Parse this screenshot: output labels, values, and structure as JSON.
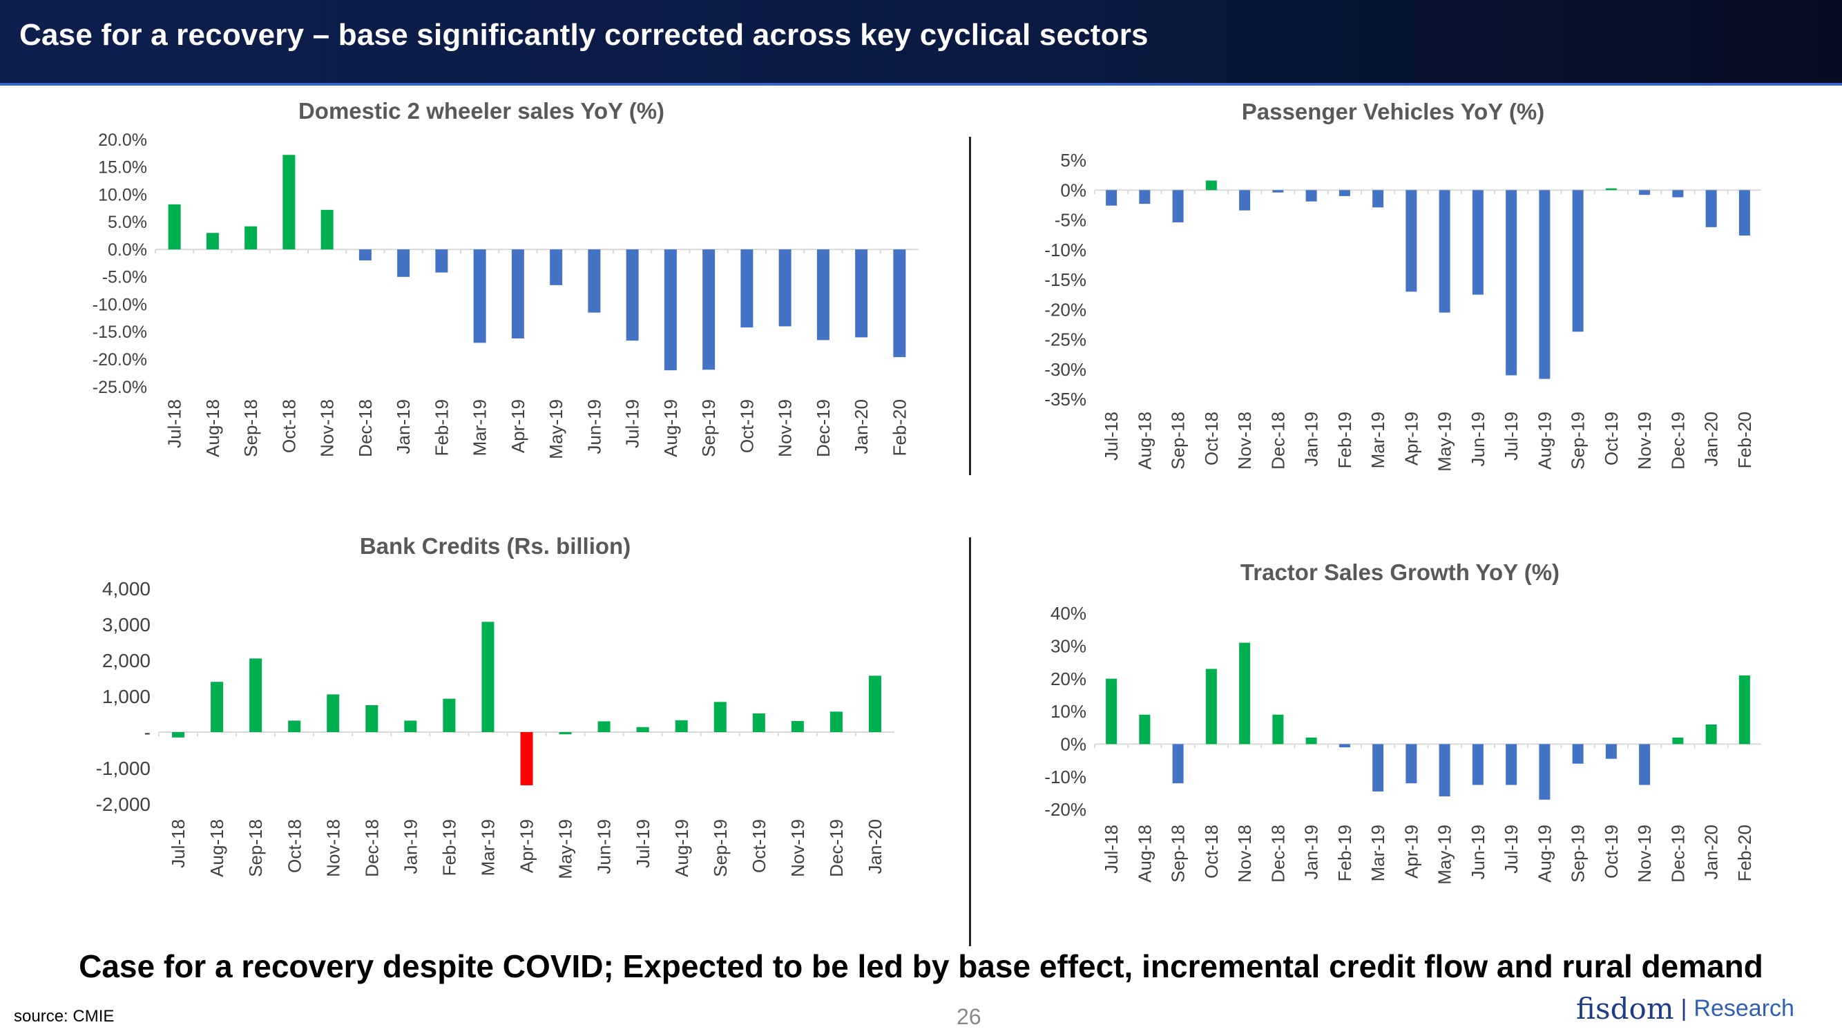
{
  "slide": {
    "title": "Case for a recovery – base significantly corrected across key cyclical sectors",
    "headline": "Case for a recovery despite COVID; Expected to be led by base effect, incremental credit flow and rural demand",
    "source": "source: CMIE",
    "page_number": "26",
    "brand": {
      "logo": "fisdom",
      "separator": "|",
      "unit": "Research"
    }
  },
  "colors": {
    "positive": "#00b050",
    "negative": "#4472c4",
    "highlight": "#ff0000",
    "title": "#595959",
    "axis_text": "#595959",
    "tick_text": "#404040"
  },
  "chart_data": [
    {
      "id": "two_wheeler",
      "type": "bar",
      "title": "Domestic 2 wheeler sales YoY (%)",
      "categories": [
        "Jul-18",
        "Aug-18",
        "Sep-18",
        "Oct-18",
        "Nov-18",
        "Dec-18",
        "Jan-19",
        "Feb-19",
        "Mar-19",
        "Apr-19",
        "May-19",
        "Jun-19",
        "Jul-19",
        "Aug-19",
        "Sep-19",
        "Oct-19",
        "Nov-19",
        "Dec-19",
        "Jan-20",
        "Feb-20"
      ],
      "values": [
        8.2,
        3.0,
        4.2,
        17.2,
        7.2,
        -2.0,
        -5.0,
        -4.2,
        -17.0,
        -16.2,
        -6.5,
        -11.5,
        -16.6,
        -22.0,
        -21.9,
        -14.2,
        -14.0,
        -16.5,
        -16.0,
        -19.6
      ],
      "ylim": [
        -25,
        20
      ],
      "yticks": [
        20,
        15,
        10,
        5,
        0,
        -5,
        -10,
        -15,
        -20,
        -25
      ],
      "ytick_labels": [
        "20.0%",
        "15.0%",
        "10.0%",
        "5.0%",
        "0.0%",
        "-5.0%",
        "-10.0%",
        "-15.0%",
        "-20.0%",
        "-25.0%"
      ]
    },
    {
      "id": "passenger_vehicles",
      "type": "bar",
      "title": "Passenger Vehicles YoY (%)",
      "categories": [
        "Jul-18",
        "Aug-18",
        "Sep-18",
        "Oct-18",
        "Nov-18",
        "Dec-18",
        "Jan-19",
        "Feb-19",
        "Mar-19",
        "Apr-19",
        "May-19",
        "Jun-19",
        "Jul-19",
        "Aug-19",
        "Sep-19",
        "Oct-19",
        "Nov-19",
        "Dec-19",
        "Jan-20",
        "Feb-20"
      ],
      "values": [
        -2.6,
        -2.3,
        -5.4,
        1.6,
        -3.4,
        -0.4,
        -1.9,
        -1.0,
        -2.9,
        -17.0,
        -20.5,
        -17.5,
        -31.0,
        -31.6,
        -23.7,
        0.3,
        -0.8,
        -1.2,
        -6.2,
        -7.6
      ],
      "ylim": [
        -35,
        5
      ],
      "yticks": [
        5,
        0,
        -5,
        -10,
        -15,
        -20,
        -25,
        -30,
        -35
      ],
      "ytick_labels": [
        "5%",
        "0%",
        "-5%",
        "-10%",
        "-15%",
        "-20%",
        "-25%",
        "-30%",
        "-35%"
      ]
    },
    {
      "id": "bank_credits",
      "type": "bar",
      "title": "Bank Credits (Rs. billion)",
      "categories": [
        "Jul-18",
        "Aug-18",
        "Sep-18",
        "Oct-18",
        "Nov-18",
        "Dec-18",
        "Jan-19",
        "Feb-19",
        "Mar-19",
        "Apr-19",
        "May-19",
        "Jun-19",
        "Jul-19",
        "Aug-19",
        "Sep-19",
        "Oct-19",
        "Nov-19",
        "Dec-19",
        "Jan-20"
      ],
      "values": [
        -150,
        1400,
        2050,
        320,
        1050,
        750,
        320,
        930,
        3070,
        -1480,
        -60,
        300,
        140,
        330,
        840,
        520,
        310,
        570,
        1570
      ],
      "highlight_index": 9,
      "ylim": [
        -2000,
        4000
      ],
      "yticks": [
        4000,
        3000,
        2000,
        1000,
        0,
        -1000,
        -2000
      ],
      "ytick_labels": [
        "4,000",
        "3,000",
        "2,000",
        "1,000",
        "-",
        "-1,000",
        "-2,000"
      ]
    },
    {
      "id": "tractor_sales",
      "type": "bar",
      "title": "Tractor Sales Growth YoY (%)",
      "categories": [
        "Jul-18",
        "Aug-18",
        "Sep-18",
        "Oct-18",
        "Nov-18",
        "Dec-18",
        "Jan-19",
        "Feb-19",
        "Mar-19",
        "Apr-19",
        "May-19",
        "Jun-19",
        "Jul-19",
        "Aug-19",
        "Sep-19",
        "Oct-19",
        "Nov-19",
        "Dec-19",
        "Jan-20",
        "Feb-20"
      ],
      "values": [
        20.0,
        9.0,
        -12.0,
        23.0,
        31.0,
        9.0,
        2.0,
        -1.0,
        -14.5,
        -12.0,
        -16.0,
        -12.5,
        -12.5,
        -17.0,
        -6.0,
        -4.5,
        -12.5,
        2.0,
        6.0,
        21.0
      ],
      "ylim": [
        -20,
        40
      ],
      "yticks": [
        40,
        30,
        20,
        10,
        0,
        -10,
        -20
      ],
      "ytick_labels": [
        "40%",
        "30%",
        "20%",
        "10%",
        "0%",
        "-10%",
        "-20%"
      ]
    }
  ]
}
